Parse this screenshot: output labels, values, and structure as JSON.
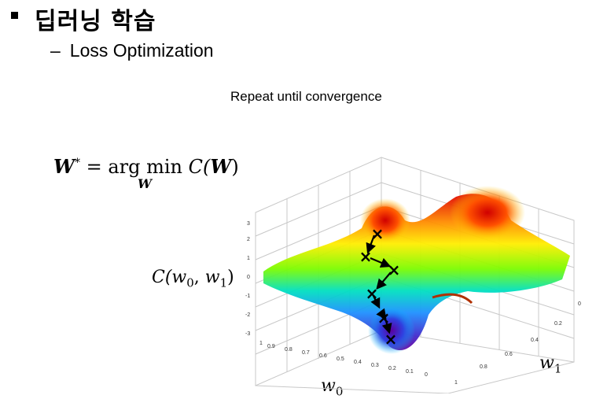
{
  "heading": {
    "title": "딥러닝 학습",
    "subtitle": "Loss Optimization"
  },
  "caption": "Repeat until convergence",
  "equation": {
    "lhs": "W",
    "star": "*",
    "eq": " = ",
    "argmin": "arg min",
    "under": "W",
    "rhs": " C(",
    "rhs_w": "W",
    "rhs_close": ")"
  },
  "labels": {
    "cost": "C(",
    "w0": "w",
    "w0_sub": "0",
    "w1": "w",
    "w1_sub": "1",
    "comma": ", ",
    "close": ")"
  },
  "plot": {
    "z_ticks": [
      "3",
      "2",
      "1",
      "0",
      "-1",
      "-2",
      "-3"
    ],
    "w0_ticks": [
      "1",
      "0.9",
      "0.8",
      "0.7",
      "0.6",
      "0.5",
      "0.4",
      "0.3",
      "0.2",
      "0.1",
      "0"
    ],
    "w1_ticks": [
      "0",
      "0.2",
      "0.4",
      "0.6",
      "0.8",
      "1"
    ],
    "path_marker": "×"
  }
}
